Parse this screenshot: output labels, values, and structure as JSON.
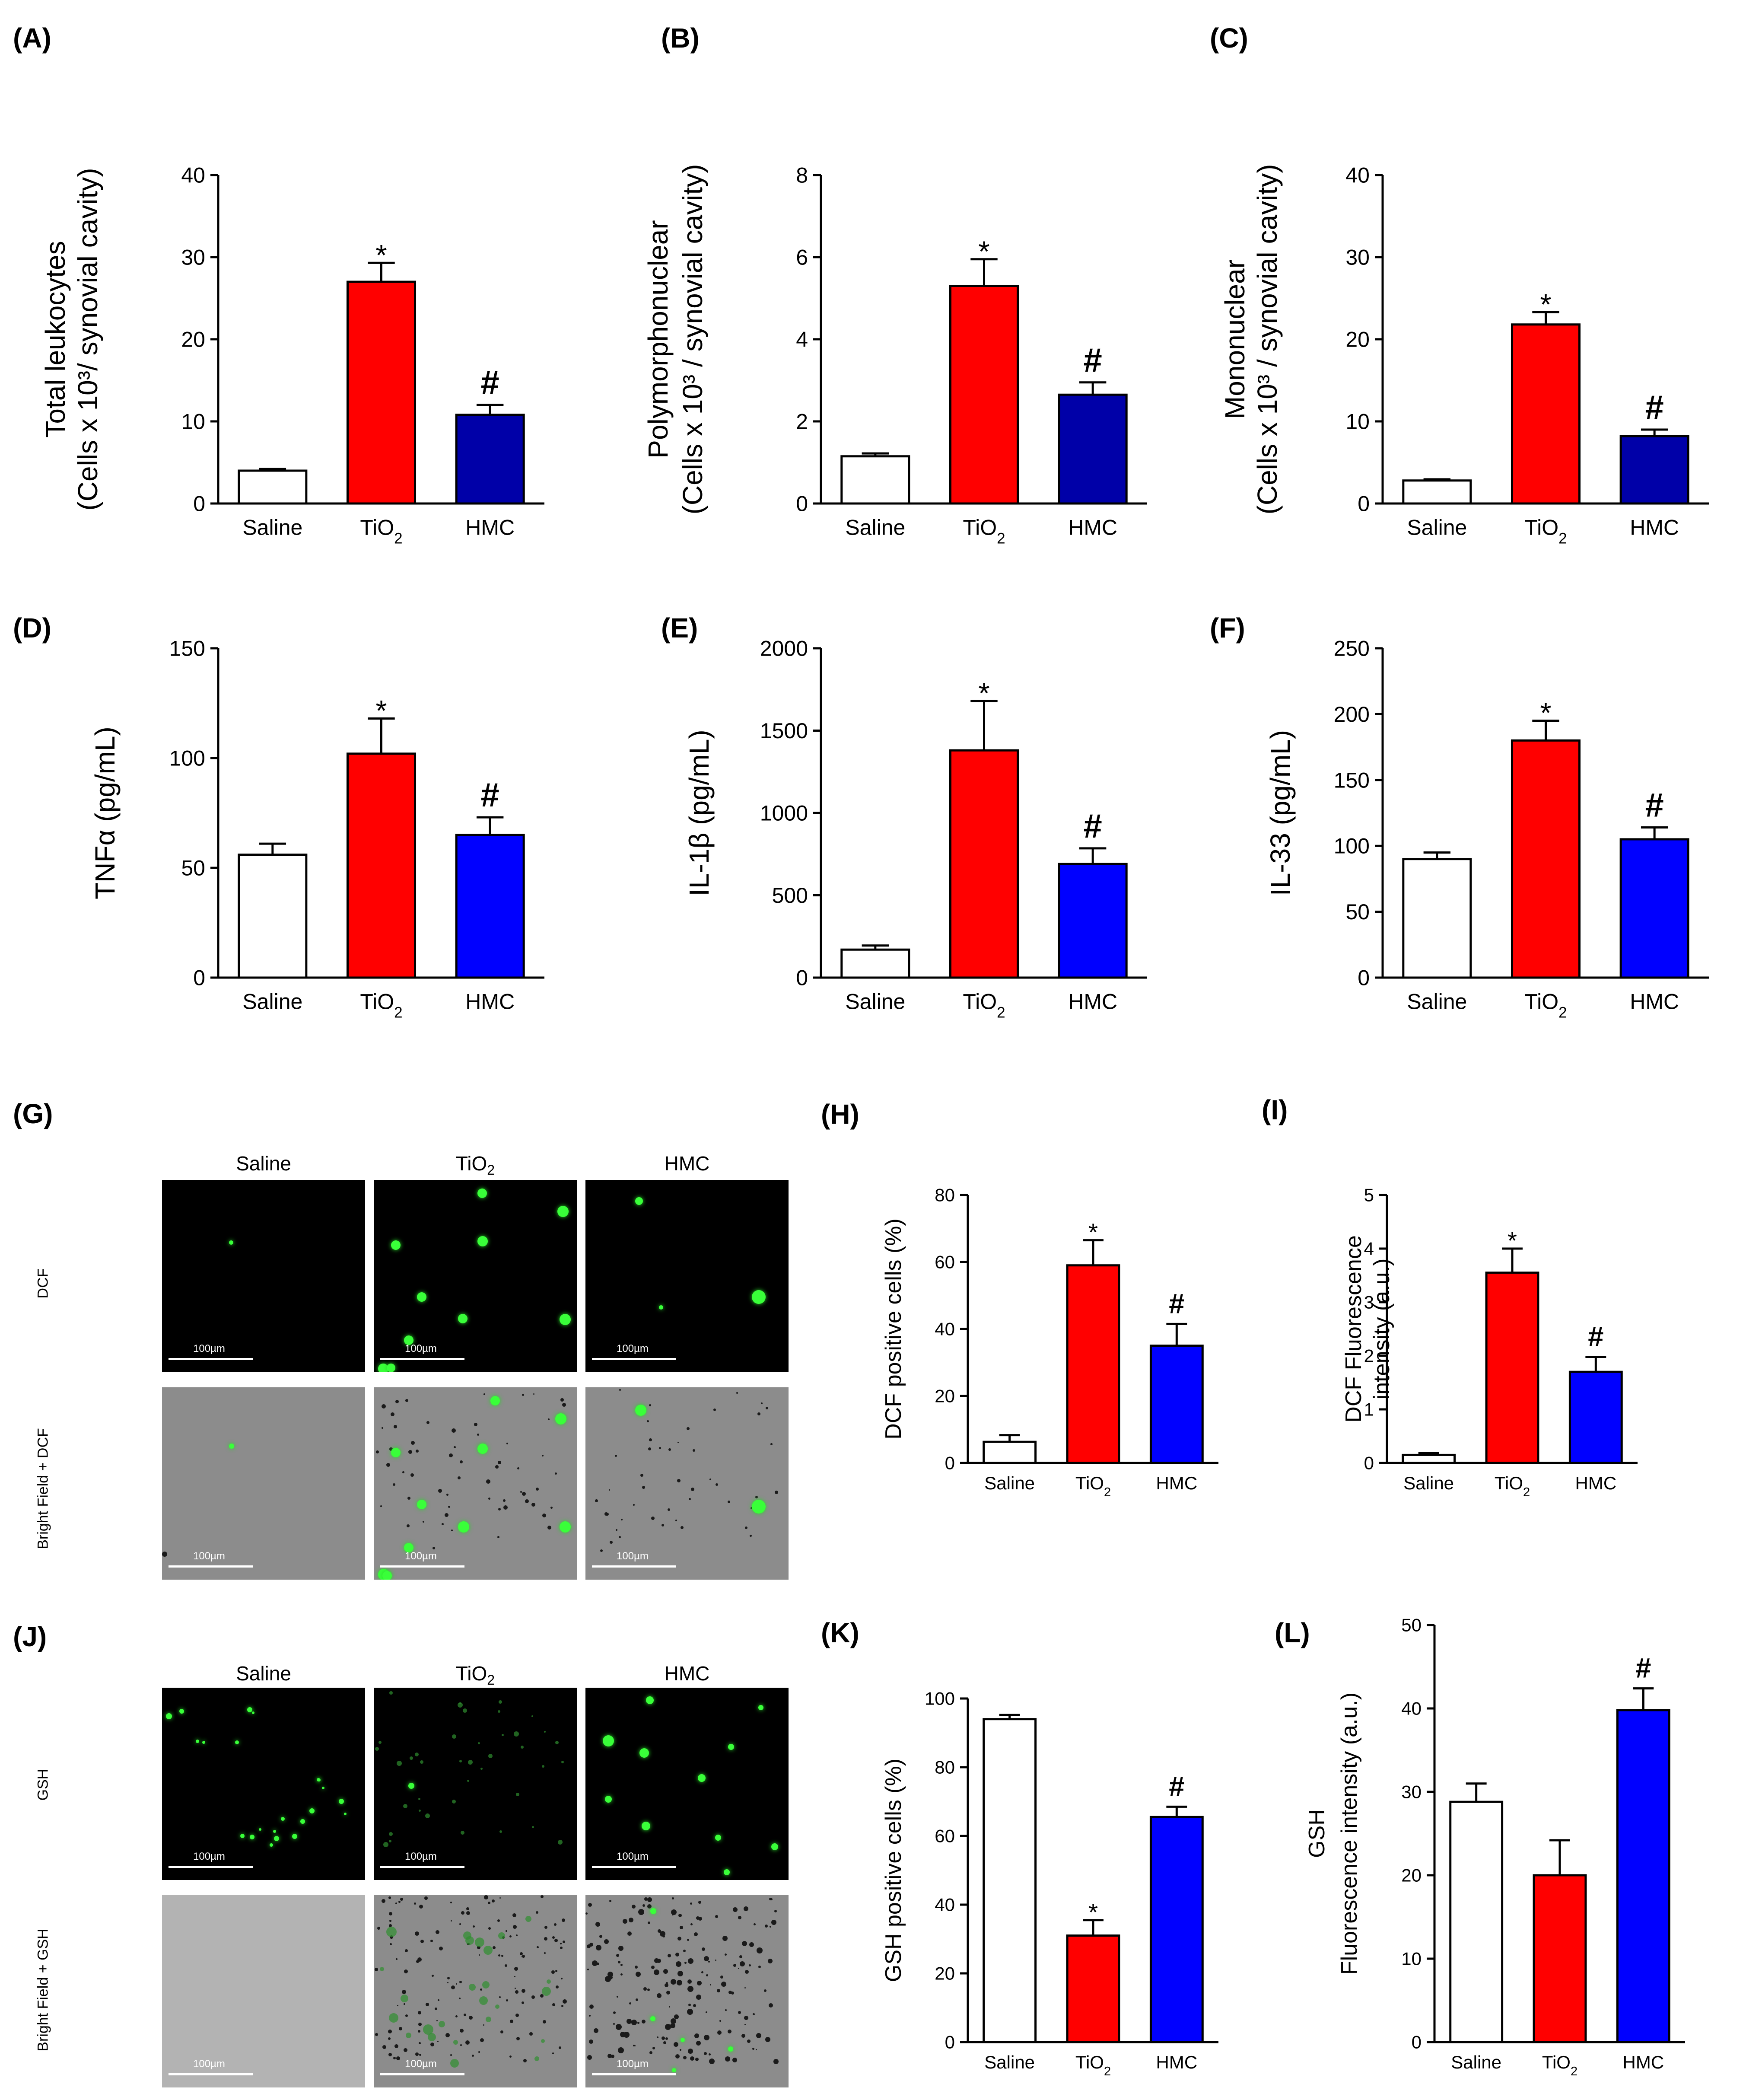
{
  "panel_labels": [
    "(A)",
    "(B)",
    "(C)",
    "(D)",
    "(E)",
    "(F)",
    "(G)",
    "(H)",
    "(I)",
    "(J)",
    "(K)",
    "(L)"
  ],
  "colors": {
    "saline": "#ffffff",
    "tio2": "#ff0000",
    "hmc_dark": "#0000a8",
    "hmc": "#0000ff",
    "axis": "#000000"
  },
  "image_panels": {
    "G": {
      "columns": [
        "Saline",
        "TiO2",
        "HMC"
      ],
      "rows": [
        "DCF",
        "Bright Field + DCF"
      ],
      "scale_label": "100µm"
    },
    "J": {
      "columns": [
        "Saline",
        "TiO2",
        "HMC"
      ],
      "rows": [
        "GSH",
        "Bright Field + GSH"
      ],
      "scale_label": "100µm"
    }
  },
  "chart_data": [
    {
      "id": "A",
      "type": "bar",
      "title": "",
      "ylabel_line1": "Total leukocytes",
      "ylabel_line2": "(Cells x 10³/ synovial cavity)",
      "categories": [
        "Saline",
        "TiO2",
        "HMC"
      ],
      "values": [
        4,
        27,
        10.8
      ],
      "errors": [
        0.2,
        2.3,
        1.2
      ],
      "annotations": [
        "",
        "*",
        "#"
      ],
      "ylim": [
        0,
        40
      ],
      "yticks": [
        0,
        10,
        20,
        30,
        40
      ],
      "bar_colors": [
        "#ffffff",
        "#ff0000",
        "#0000a8"
      ]
    },
    {
      "id": "B",
      "type": "bar",
      "title": "",
      "ylabel_line1": "Polymorphonuclear",
      "ylabel_line2": "(Cells x 10³ / synovial cavity)",
      "categories": [
        "Saline",
        "TiO2",
        "HMC"
      ],
      "values": [
        1.15,
        5.3,
        2.65
      ],
      "errors": [
        0.07,
        0.65,
        0.3
      ],
      "annotations": [
        "",
        "*",
        "#"
      ],
      "ylim": [
        0,
        8
      ],
      "yticks": [
        0,
        2,
        4,
        6,
        8
      ],
      "bar_colors": [
        "#ffffff",
        "#ff0000",
        "#0000a8"
      ]
    },
    {
      "id": "C",
      "type": "bar",
      "title": "",
      "ylabel_line1": "Mononuclear",
      "ylabel_line2": "(Cells x 10³ / synovial cavity)",
      "categories": [
        "Saline",
        "TiO2",
        "HMC"
      ],
      "values": [
        2.8,
        21.8,
        8.2
      ],
      "errors": [
        0.15,
        1.5,
        0.8
      ],
      "annotations": [
        "",
        "*",
        "#"
      ],
      "ylim": [
        0,
        40
      ],
      "yticks": [
        0,
        10,
        20,
        30,
        40
      ],
      "bar_colors": [
        "#ffffff",
        "#ff0000",
        "#0000a8"
      ]
    },
    {
      "id": "D",
      "type": "bar",
      "title": "",
      "ylabel_line1": "",
      "ylabel_line2": "TNFα (pg/mL)",
      "categories": [
        "Saline",
        "TiO2",
        "HMC"
      ],
      "values": [
        56,
        102,
        65
      ],
      "errors": [
        5,
        16,
        8
      ],
      "annotations": [
        "",
        "*",
        "#"
      ],
      "ylim": [
        0,
        150
      ],
      "yticks": [
        0,
        50,
        100,
        150
      ],
      "bar_colors": [
        "#ffffff",
        "#ff0000",
        "#0000ff"
      ]
    },
    {
      "id": "E",
      "type": "bar",
      "title": "",
      "ylabel_line1": "",
      "ylabel_line2": "IL-1β  (pg/mL)",
      "categories": [
        "Saline",
        "TiO2",
        "HMC"
      ],
      "values": [
        170,
        1380,
        690
      ],
      "errors": [
        25,
        300,
        95
      ],
      "annotations": [
        "",
        "*",
        "#"
      ],
      "ylim": [
        0,
        2000
      ],
      "yticks": [
        0,
        500,
        1000,
        1500,
        2000
      ],
      "bar_colors": [
        "#ffffff",
        "#ff0000",
        "#0000ff"
      ]
    },
    {
      "id": "F",
      "type": "bar",
      "title": "",
      "ylabel_line1": "",
      "ylabel_line2": "IL-33 (pg/mL)",
      "categories": [
        "Saline",
        "TiO2",
        "HMC"
      ],
      "values": [
        90,
        180,
        105
      ],
      "errors": [
        5,
        15,
        9
      ],
      "annotations": [
        "",
        "*",
        "#"
      ],
      "ylim": [
        0,
        250
      ],
      "yticks": [
        0,
        50,
        100,
        150,
        200,
        250
      ],
      "bar_colors": [
        "#ffffff",
        "#ff0000",
        "#0000ff"
      ]
    },
    {
      "id": "H",
      "type": "bar",
      "title": "",
      "ylabel_line1": "",
      "ylabel_line2": "DCF positive cells (%)",
      "categories": [
        "Saline",
        "TiO2",
        "HMC"
      ],
      "values": [
        6.3,
        59,
        35
      ],
      "errors": [
        2,
        7.5,
        6.5
      ],
      "annotations": [
        "",
        "*",
        "#"
      ],
      "ylim": [
        0,
        80
      ],
      "yticks": [
        0,
        20,
        40,
        60,
        80
      ],
      "bar_colors": [
        "#ffffff",
        "#ff0000",
        "#0000ff"
      ]
    },
    {
      "id": "I",
      "type": "bar",
      "title": "",
      "ylabel_line1": "DCF Fluorescence",
      "ylabel_line2": "intensity (a.u.)",
      "categories": [
        "Saline",
        "TiO2",
        "HMC"
      ],
      "values": [
        0.15,
        3.55,
        1.7
      ],
      "errors": [
        0.04,
        0.45,
        0.28
      ],
      "annotations": [
        "",
        "*",
        "#"
      ],
      "ylim": [
        0,
        5
      ],
      "yticks": [
        0,
        1,
        2,
        3,
        4,
        5
      ],
      "bar_colors": [
        "#ffffff",
        "#ff0000",
        "#0000ff"
      ]
    },
    {
      "id": "K",
      "type": "bar",
      "title": "",
      "ylabel_line1": "",
      "ylabel_line2": "GSH positive cells (%)",
      "categories": [
        "Saline",
        "TiO2",
        "HMC"
      ],
      "values": [
        94,
        31,
        65.5
      ],
      "errors": [
        1.2,
        4.5,
        3
      ],
      "annotations": [
        "",
        "*",
        "#"
      ],
      "ylim": [
        0,
        100
      ],
      "yticks": [
        0,
        20,
        40,
        60,
        80,
        100
      ],
      "bar_colors": [
        "#ffffff",
        "#ff0000",
        "#0000ff"
      ]
    },
    {
      "id": "L",
      "type": "bar",
      "title": "",
      "ylabel_line1": "GSH",
      "ylabel_line2": "Fluorescence intensity (a.u.)",
      "categories": [
        "Saline",
        "TiO2",
        "HMC"
      ],
      "values": [
        28.8,
        20,
        39.8
      ],
      "errors": [
        2.2,
        4.2,
        2.6
      ],
      "annotations": [
        "",
        "",
        "#"
      ],
      "ylim": [
        0,
        50
      ],
      "yticks": [
        0,
        10,
        20,
        30,
        40,
        50
      ],
      "bar_colors": [
        "#ffffff",
        "#ff0000",
        "#0000ff"
      ]
    }
  ]
}
